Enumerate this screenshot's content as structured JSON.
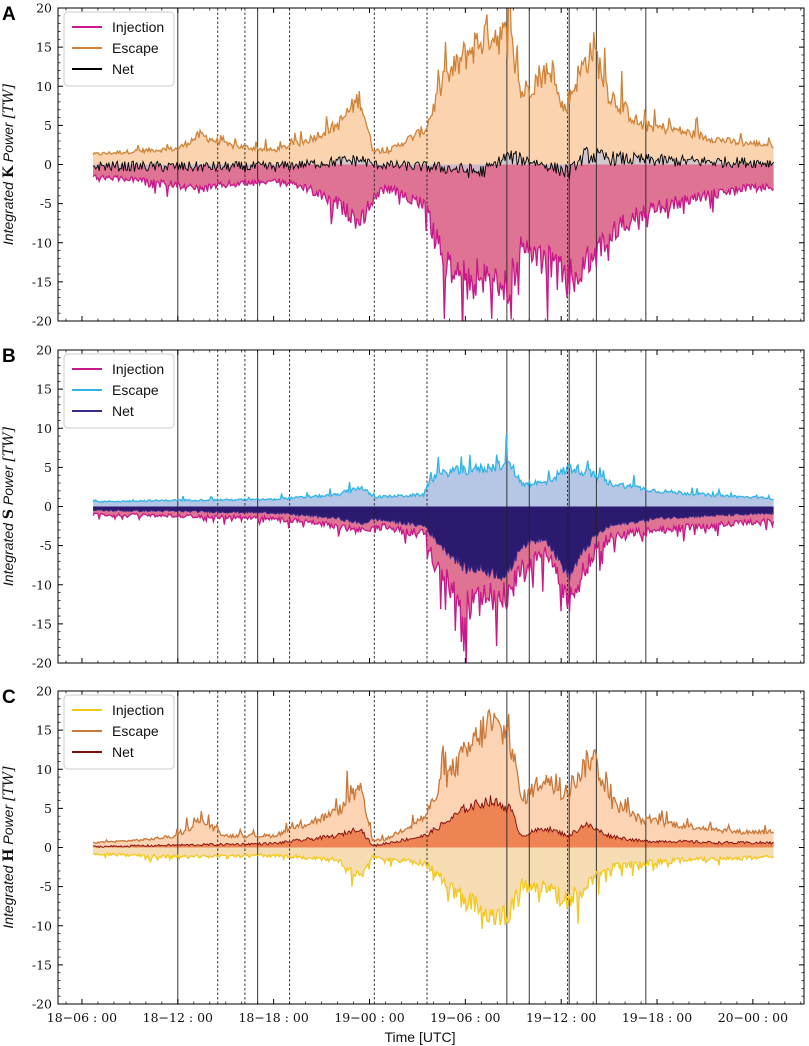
{
  "chart_data": {
    "type": "area",
    "figure": {
      "xlabel": "Time [UTC]",
      "x_ticks": [
        {
          "t": 0,
          "label": "18−06 : 00"
        },
        {
          "t": 6,
          "label": "18−12 : 00"
        },
        {
          "t": 12,
          "label": "18−18 : 00"
        },
        {
          "t": 18,
          "label": "19−00 : 00"
        },
        {
          "t": 24,
          "label": "19−06 : 00"
        },
        {
          "t": 30,
          "label": "19−12 : 00"
        },
        {
          "t": 36,
          "label": "19−18 : 00"
        },
        {
          "t": 42,
          "label": "20−00 : 00"
        }
      ],
      "xlim": [
        -1.5,
        45.2
      ],
      "data_x_range": [
        0.7,
        43.3
      ],
      "event_lines": [
        {
          "t": 6.0,
          "style": "solid"
        },
        {
          "t": 8.5,
          "style": "dashed"
        },
        {
          "t": 10.2,
          "style": "dashed"
        },
        {
          "t": 11.0,
          "style": "solid"
        },
        {
          "t": 13.0,
          "style": "dashed"
        },
        {
          "t": 18.3,
          "style": "dashed"
        },
        {
          "t": 21.6,
          "style": "dashed"
        },
        {
          "t": 26.6,
          "style": "solid"
        },
        {
          "t": 28.0,
          "style": "solid"
        },
        {
          "t": 30.4,
          "style": "dashed"
        },
        {
          "t": 30.5,
          "style": "solid"
        },
        {
          "t": 32.2,
          "style": "solid"
        },
        {
          "t": 35.3,
          "style": "solid"
        }
      ]
    },
    "panels": [
      {
        "label": "A",
        "ylabel_prefix": "Integrated ",
        "ylabel_symbol": "K",
        "ylabel_mid": " Power ",
        "ylabel_unit": "[TW]",
        "ylim": [
          -20,
          20
        ],
        "y_ticks": [
          -20,
          -15,
          -10,
          -5,
          0,
          5,
          10,
          15,
          20
        ],
        "legend_position": "top-left",
        "series": [
          {
            "name": "Injection",
            "color": "#c8198a",
            "fill": "#df7393",
            "sign": -1
          },
          {
            "name": "Escape",
            "color": "#cf8439",
            "fill": "#fbd3ae",
            "sign": 1
          },
          {
            "name": "Net",
            "color": "#000000",
            "fill": "#c9c6d2",
            "sign": 0
          }
        ],
        "envelope": {
          "escape": [
            [
              0.7,
              1.3
            ],
            [
              4,
              1.8
            ],
            [
              6,
              2.0
            ],
            [
              7.4,
              3.8
            ],
            [
              9,
              2.5
            ],
            [
              12,
              1.8
            ],
            [
              14,
              3.0
            ],
            [
              16,
              5.0
            ],
            [
              17.4,
              8.6
            ],
            [
              18.2,
              2.0
            ],
            [
              19,
              1.5
            ],
            [
              21.5,
              4.5
            ],
            [
              22.5,
              10
            ],
            [
              24,
              14
            ],
            [
              25.5,
              17
            ],
            [
              26.8,
              16
            ],
            [
              27.5,
              9
            ],
            [
              29,
              12
            ],
            [
              30.2,
              7
            ],
            [
              31,
              11
            ],
            [
              32,
              15
            ],
            [
              33,
              9
            ],
            [
              35,
              5
            ],
            [
              37,
              4.5
            ],
            [
              39,
              3.5
            ],
            [
              41,
              2.8
            ],
            [
              43.3,
              2.5
            ]
          ],
          "injection": [
            [
              0.7,
              -1.6
            ],
            [
              4,
              -2.0
            ],
            [
              6,
              -2.6
            ],
            [
              7.4,
              -3.2
            ],
            [
              9,
              -2.6
            ],
            [
              12,
              -2.0
            ],
            [
              14,
              -3.0
            ],
            [
              16,
              -5.0
            ],
            [
              17.4,
              -7.4
            ],
            [
              18.2,
              -4.5
            ],
            [
              19,
              -3.0
            ],
            [
              21.5,
              -5.0
            ],
            [
              22,
              -9
            ],
            [
              23,
              -13
            ],
            [
              24,
              -15
            ],
            [
              25.5,
              -14
            ],
            [
              26.6,
              -16
            ],
            [
              27.5,
              -11
            ],
            [
              29,
              -12
            ],
            [
              30.4,
              -15
            ],
            [
              31,
              -14
            ],
            [
              32,
              -12
            ],
            [
              33,
              -9
            ],
            [
              35,
              -6
            ],
            [
              37,
              -5
            ],
            [
              39,
              -4
            ],
            [
              41,
              -3.2
            ],
            [
              43.3,
              -2.8
            ]
          ],
          "net": [
            [
              0.7,
              -0.2
            ],
            [
              6,
              -0.3
            ],
            [
              12,
              -0.3
            ],
            [
              17.5,
              0.6
            ],
            [
              18.2,
              0
            ],
            [
              21.6,
              -0.3
            ],
            [
              23,
              -0.5
            ],
            [
              25,
              -1.0
            ],
            [
              26.6,
              1.0
            ],
            [
              28,
              0.5
            ],
            [
              30.5,
              -1.0
            ],
            [
              31.5,
              1.2
            ],
            [
              33,
              0.8
            ],
            [
              36,
              0.5
            ],
            [
              43.3,
              0.2
            ]
          ]
        },
        "noise": {
          "escape": 0.16,
          "injection": 0.18,
          "net": 1.4
        }
      },
      {
        "label": "B",
        "ylabel_prefix": "Integrated ",
        "ylabel_symbol": "S",
        "ylabel_mid": " Power ",
        "ylabel_unit": "[TW]",
        "ylim": [
          -20,
          20
        ],
        "y_ticks": [
          -20,
          -15,
          -10,
          -5,
          0,
          5,
          10,
          15,
          20
        ],
        "legend_position": "top-left",
        "series": [
          {
            "name": "Injection",
            "color": "#c8198a",
            "fill": "#df7393",
            "sign": -1
          },
          {
            "name": "Escape",
            "color": "#30b4e6",
            "fill": "#b6c7e6",
            "sign": 1
          },
          {
            "name": "Net",
            "color": "#3b2a8a",
            "fill": "#2c1a6e",
            "sign": 0
          }
        ],
        "envelope": {
          "escape": [
            [
              0.7,
              0.6
            ],
            [
              6,
              0.8
            ],
            [
              12,
              0.9
            ],
            [
              16,
              1.5
            ],
            [
              17.4,
              2.5
            ],
            [
              18.3,
              1.2
            ],
            [
              21.4,
              1.5
            ],
            [
              21.8,
              3.5
            ],
            [
              23,
              4.5
            ],
            [
              25,
              4.8
            ],
            [
              26.8,
              5.5
            ],
            [
              27.5,
              3.0
            ],
            [
              29,
              3.0
            ],
            [
              30.5,
              5.0
            ],
            [
              31.5,
              4.5
            ],
            [
              33,
              3.0
            ],
            [
              36,
              2.0
            ],
            [
              39,
              1.5
            ],
            [
              43.3,
              1.0
            ]
          ],
          "injection": [
            [
              0.7,
              -1.0
            ],
            [
              6,
              -1.2
            ],
            [
              12,
              -1.5
            ],
            [
              16,
              -2.5
            ],
            [
              17.5,
              -3.2
            ],
            [
              18.3,
              -2.5
            ],
            [
              21.5,
              -3.5
            ],
            [
              22,
              -7
            ],
            [
              23,
              -10
            ],
            [
              24,
              -13
            ],
            [
              25,
              -12
            ],
            [
              26.6,
              -11
            ],
            [
              27.5,
              -8
            ],
            [
              29,
              -6
            ],
            [
              30.5,
              -12
            ],
            [
              31,
              -10
            ],
            [
              32,
              -6
            ],
            [
              33,
              -4
            ],
            [
              36,
              -3
            ],
            [
              39,
              -2.5
            ],
            [
              43.3,
              -1.8
            ]
          ],
          "net": [
            [
              0.7,
              -0.5
            ],
            [
              6,
              -0.6
            ],
            [
              12,
              -0.8
            ],
            [
              16,
              -1.5
            ],
            [
              17.5,
              -2.2
            ],
            [
              18.3,
              -1.6
            ],
            [
              21.5,
              -2.5
            ],
            [
              22,
              -4
            ],
            [
              23,
              -6
            ],
            [
              24,
              -8
            ],
            [
              25,
              -8
            ],
            [
              26.6,
              -9
            ],
            [
              27.5,
              -5
            ],
            [
              29,
              -4
            ],
            [
              30.5,
              -9
            ],
            [
              31,
              -7
            ],
            [
              32,
              -4
            ],
            [
              33,
              -2.5
            ],
            [
              36,
              -1.5
            ],
            [
              39,
              -1.2
            ],
            [
              43.3,
              -0.9
            ]
          ]
        },
        "noise": {
          "escape": 0.14,
          "injection": 0.18,
          "net": 0.22
        }
      },
      {
        "label": "C",
        "ylabel_prefix": "Integrated ",
        "ylabel_symbol": "H",
        "ylabel_mid": " Power ",
        "ylabel_unit": "[TW]",
        "ylim": [
          -20,
          20
        ],
        "y_ticks": [
          -20,
          -15,
          -10,
          -5,
          0,
          5,
          10,
          15,
          20
        ],
        "legend_position": "top-left",
        "series": [
          {
            "name": "Injection",
            "color": "#f3c91e",
            "fill": "#f6dcb3",
            "sign": -1
          },
          {
            "name": "Escape",
            "color": "#c9783a",
            "fill": "#fcd3b3",
            "sign": 1
          },
          {
            "name": "Net",
            "color": "#7f0c0c",
            "fill": "#ee8454",
            "sign": 0
          }
        ],
        "envelope": {
          "escape": [
            [
              0.7,
              0.6
            ],
            [
              4,
              1.0
            ],
            [
              6,
              1.5
            ],
            [
              7.4,
              3.5
            ],
            [
              9,
              1.5
            ],
            [
              12,
              1.5
            ],
            [
              14,
              3.0
            ],
            [
              16,
              4.5
            ],
            [
              17.4,
              7.5
            ],
            [
              18.2,
              1.0
            ],
            [
              19,
              1.0
            ],
            [
              21.5,
              4.0
            ],
            [
              22.5,
              8
            ],
            [
              24,
              12
            ],
            [
              25.5,
              16
            ],
            [
              26.8,
              14
            ],
            [
              27.5,
              6
            ],
            [
              29,
              9
            ],
            [
              30.2,
              6
            ],
            [
              31,
              9
            ],
            [
              32,
              12
            ],
            [
              33,
              6
            ],
            [
              35,
              3.5
            ],
            [
              37,
              3.0
            ],
            [
              39,
              2.5
            ],
            [
              41,
              2.0
            ],
            [
              43.3,
              2.0
            ]
          ],
          "injection": [
            [
              0.7,
              -0.8
            ],
            [
              6,
              -1.2
            ],
            [
              12,
              -1.0
            ],
            [
              16,
              -1.6
            ],
            [
              17.4,
              -3.8
            ],
            [
              18.2,
              -1.2
            ],
            [
              21.5,
              -2.0
            ],
            [
              22.5,
              -4
            ],
            [
              24,
              -7
            ],
            [
              25.5,
              -8
            ],
            [
              26.6,
              -9
            ],
            [
              27.5,
              -5
            ],
            [
              29,
              -5
            ],
            [
              30.4,
              -7
            ],
            [
              31,
              -6
            ],
            [
              32,
              -4
            ],
            [
              33,
              -2.5
            ],
            [
              36,
              -1.8
            ],
            [
              39,
              -1.5
            ],
            [
              43.3,
              -1.2
            ]
          ],
          "net": [
            [
              0.7,
              0.1
            ],
            [
              6,
              0.3
            ],
            [
              12,
              0.5
            ],
            [
              16,
              1.5
            ],
            [
              17.4,
              2.5
            ],
            [
              18.2,
              0.2
            ],
            [
              21.5,
              1.5
            ],
            [
              23,
              3.5
            ],
            [
              24,
              5
            ],
            [
              25.5,
              6
            ],
            [
              26.8,
              5
            ],
            [
              27.5,
              1.5
            ],
            [
              29,
              2.5
            ],
            [
              30.5,
              1.5
            ],
            [
              31.5,
              3.0
            ],
            [
              33,
              1.5
            ],
            [
              35,
              0.8
            ],
            [
              37,
              0.8
            ],
            [
              40,
              0.6
            ],
            [
              43.3,
              0.6
            ]
          ]
        },
        "noise": {
          "escape": 0.16,
          "injection": 0.2,
          "net": 0.3
        }
      }
    ]
  }
}
